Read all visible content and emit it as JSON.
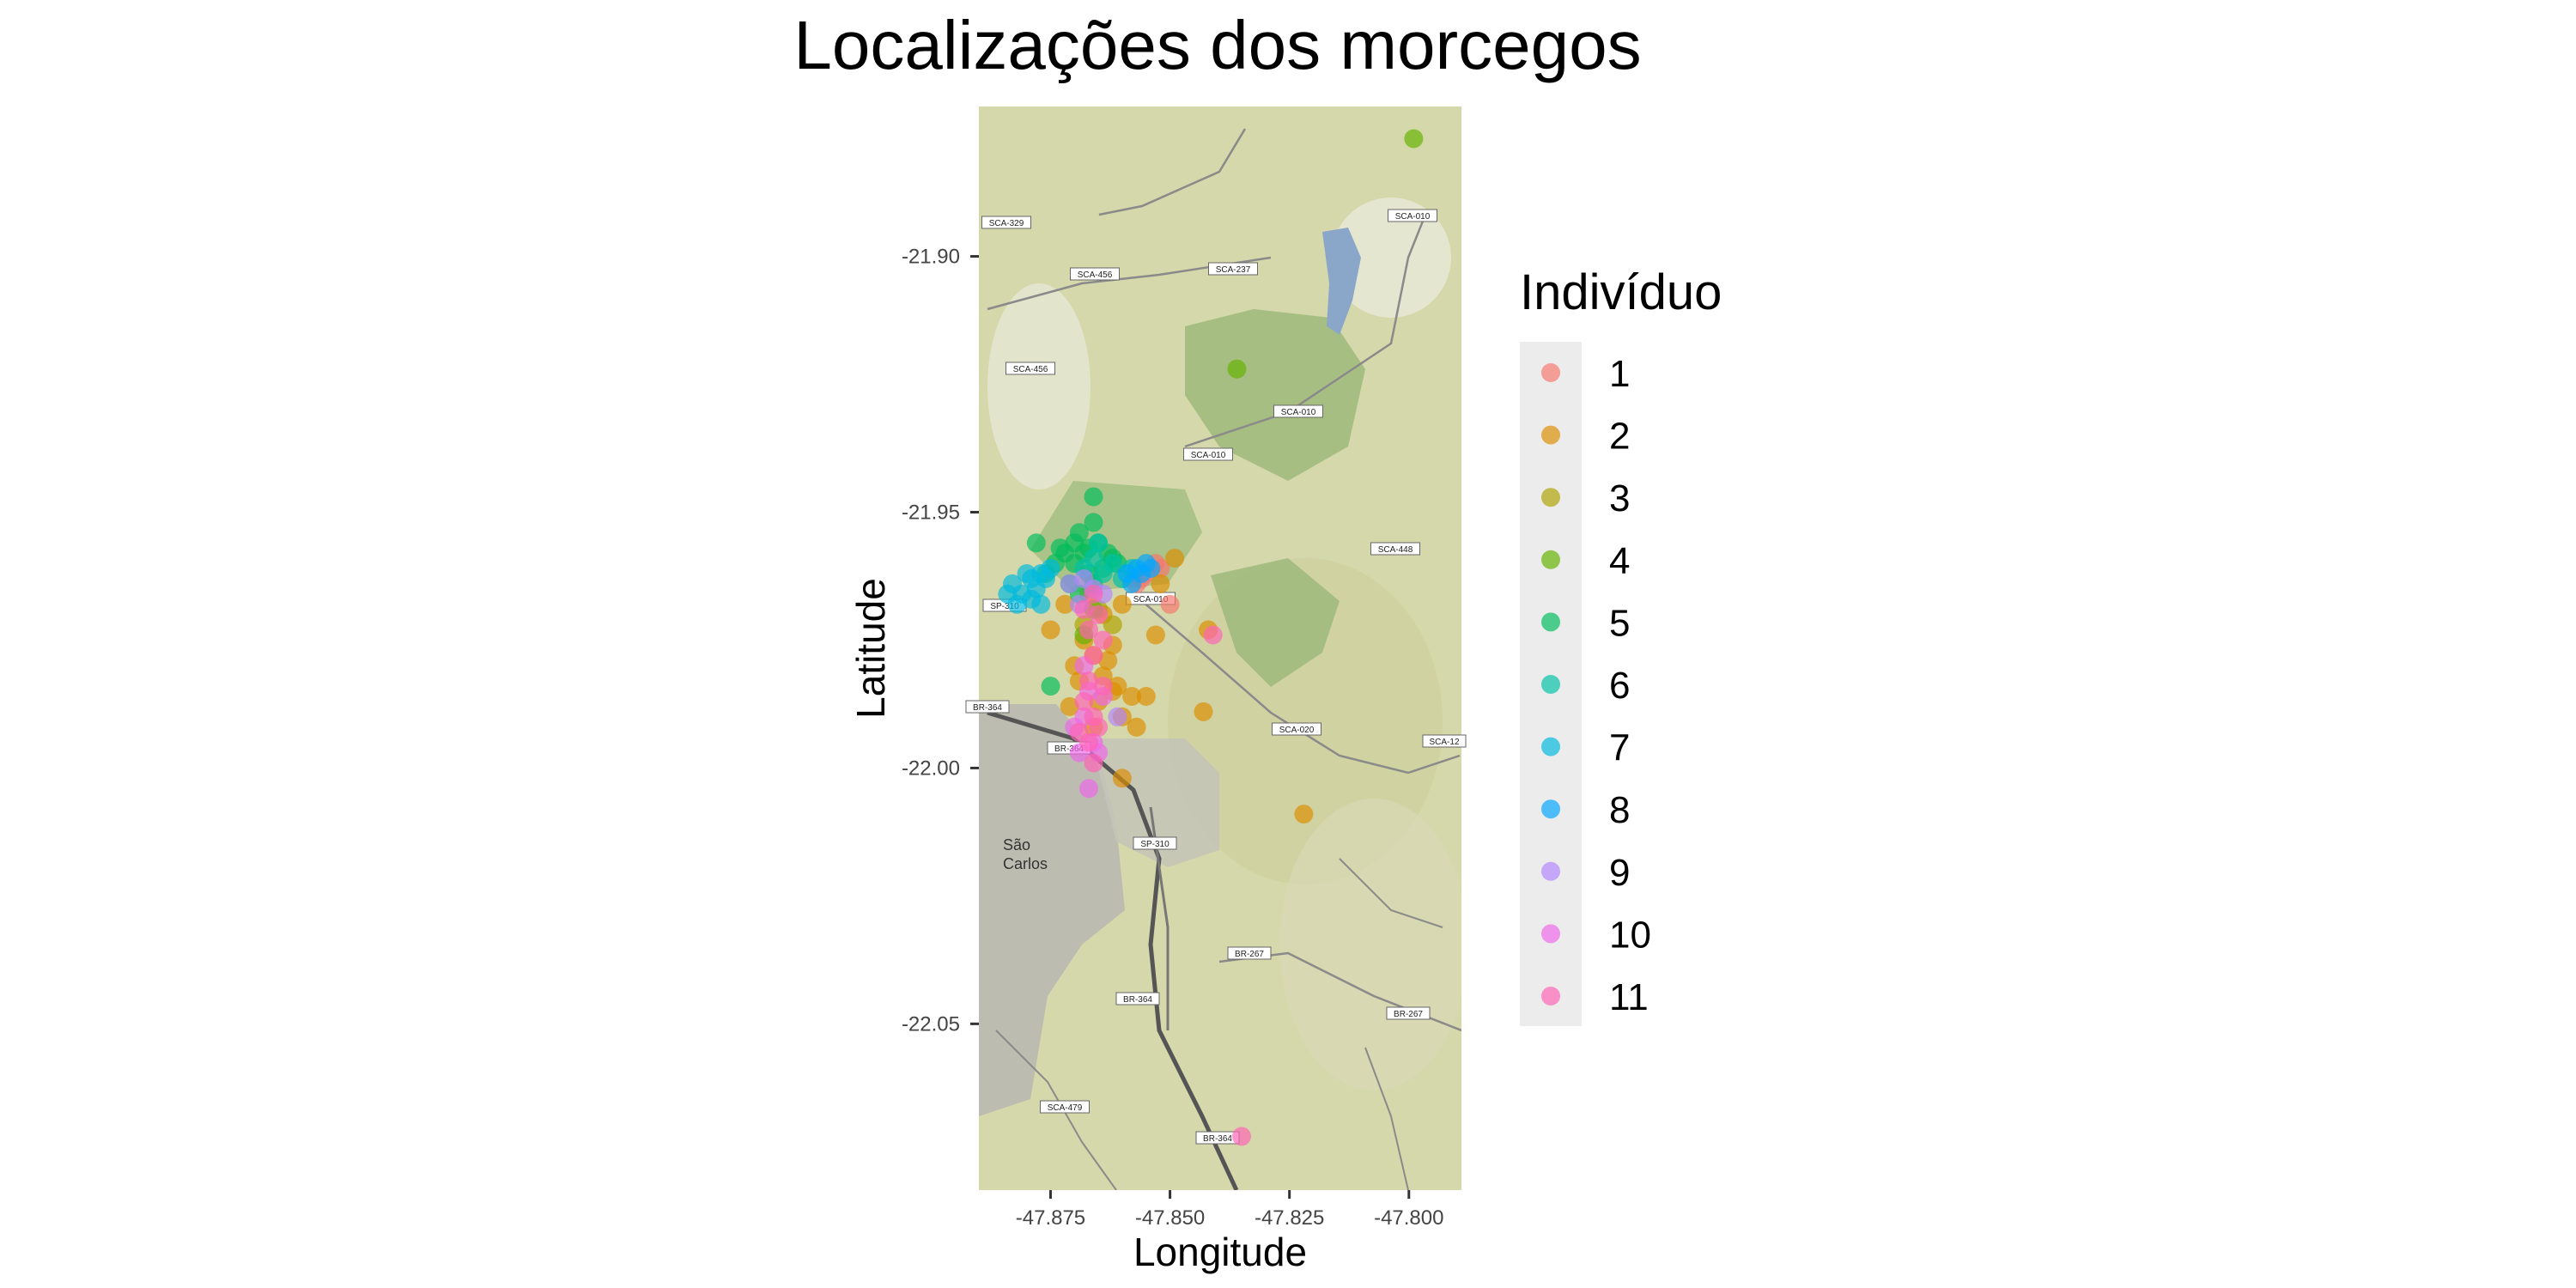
{
  "chart_data": {
    "type": "scatter",
    "title": "Localizações dos morcegos",
    "xlabel": "Longitude",
    "ylabel": "Latitude",
    "xlim": [
      -47.89,
      -47.789
    ],
    "ylim": [
      -22.0825,
      -21.8707
    ],
    "x_ticks": [
      {
        "value": -47.875,
        "label": "-47.875"
      },
      {
        "value": -47.85,
        "label": "-47.850"
      },
      {
        "value": -47.825,
        "label": "-47.825"
      },
      {
        "value": -47.8,
        "label": "-47.800"
      }
    ],
    "y_ticks": [
      {
        "value": -21.9,
        "label": "-21.90"
      },
      {
        "value": -21.95,
        "label": "-21.95"
      },
      {
        "value": -22.0,
        "label": "-22.00"
      },
      {
        "value": -22.05,
        "label": "-22.05"
      }
    ],
    "legend": {
      "title": "Indivíduo",
      "position": "right"
    },
    "background": "map tiles",
    "map_labels": [
      "SCA-329",
      "SCA-456",
      "SCA-237",
      "SCA-010",
      "SCA-456",
      "SCA-010",
      "SCA-010",
      "SCA-448",
      "SP-310",
      "SCA-010",
      "BR-364",
      "BR-364",
      "SCA-020",
      "SCA-12",
      "SP-310",
      "São",
      "Carlos",
      "BR-267",
      "BR-364",
      "BR-267",
      "SCA-479",
      "BR-364"
    ],
    "series": [
      {
        "name": "1",
        "color": "#F8766D",
        "points": [
          [
            -47.853,
            -21.96
          ],
          [
            -47.855,
            -21.962
          ],
          [
            -47.852,
            -21.961
          ],
          [
            -47.856,
            -21.963
          ],
          [
            -47.857,
            -21.964
          ],
          [
            -47.85,
            -21.968
          ]
        ]
      },
      {
        "name": "2",
        "color": "#DB8E00",
        "points": [
          [
            -47.868,
            -21.975
          ],
          [
            -47.87,
            -21.98
          ],
          [
            -47.866,
            -21.978
          ],
          [
            -47.864,
            -21.982
          ],
          [
            -47.862,
            -21.985
          ],
          [
            -47.86,
            -21.99
          ],
          [
            -47.858,
            -21.986
          ],
          [
            -47.855,
            -21.986
          ],
          [
            -47.853,
            -21.974
          ],
          [
            -47.857,
            -21.992
          ],
          [
            -47.86,
            -22.002
          ],
          [
            -47.842,
            -21.973
          ],
          [
            -47.843,
            -21.989
          ],
          [
            -47.822,
            -22.009
          ],
          [
            -47.849,
            -21.959
          ],
          [
            -47.852,
            -21.964
          ],
          [
            -47.875,
            -21.973
          ],
          [
            -47.866,
            -21.992
          ],
          [
            -47.863,
            -21.979
          ],
          [
            -47.861,
            -21.984
          ],
          [
            -47.869,
            -21.983
          ],
          [
            -47.871,
            -21.988
          ],
          [
            -47.864,
            -21.97
          ],
          [
            -47.86,
            -21.968
          ],
          [
            -47.867,
            -21.966
          ],
          [
            -47.872,
            -21.968
          ],
          [
            -47.865,
            -21.987
          ],
          [
            -47.862,
            -21.976
          ]
        ]
      },
      {
        "name": "3",
        "color": "#AEA200",
        "points": [
          [
            -47.868,
            -21.972
          ],
          [
            -47.865,
            -21.969
          ],
          [
            -47.862,
            -21.972
          ]
        ]
      },
      {
        "name": "4",
        "color": "#64B200",
        "points": [
          [
            -47.799,
            -21.877
          ],
          [
            -47.836,
            -21.922
          ],
          [
            -47.866,
            -21.969
          ],
          [
            -47.868,
            -21.974
          ]
        ]
      },
      {
        "name": "5",
        "color": "#00BD5C",
        "points": [
          [
            -47.866,
            -21.947
          ],
          [
            -47.866,
            -21.952
          ],
          [
            -47.869,
            -21.954
          ],
          [
            -47.872,
            -21.958
          ],
          [
            -47.874,
            -21.96
          ],
          [
            -47.87,
            -21.96
          ],
          [
            -47.868,
            -21.958
          ],
          [
            -47.865,
            -21.956
          ],
          [
            -47.863,
            -21.958
          ],
          [
            -47.861,
            -21.96
          ],
          [
            -47.878,
            -21.956
          ],
          [
            -47.876,
            -21.962
          ],
          [
            -47.871,
            -21.964
          ],
          [
            -47.867,
            -21.962
          ],
          [
            -47.864,
            -21.961
          ],
          [
            -47.869,
            -21.966
          ],
          [
            -47.866,
            -21.964
          ],
          [
            -47.875,
            -21.984
          ],
          [
            -47.862,
            -21.959
          ],
          [
            -47.873,
            -21.957
          ],
          [
            -47.87,
            -21.956
          ],
          [
            -47.867,
            -21.957
          ]
        ]
      },
      {
        "name": "6",
        "color": "#00C1A7",
        "points": [
          [
            -47.865,
            -21.956
          ],
          [
            -47.862,
            -21.96
          ],
          [
            -47.86,
            -21.963
          ],
          [
            -47.864,
            -21.962
          ],
          [
            -47.868,
            -21.961
          ],
          [
            -47.858,
            -21.961
          ],
          [
            -47.866,
            -21.959
          ]
        ]
      },
      {
        "name": "7",
        "color": "#00BADE",
        "points": [
          [
            -47.883,
            -21.964
          ],
          [
            -47.881,
            -21.966
          ],
          [
            -47.879,
            -21.963
          ],
          [
            -47.877,
            -21.962
          ],
          [
            -47.882,
            -21.968
          ],
          [
            -47.878,
            -21.965
          ],
          [
            -47.876,
            -21.963
          ],
          [
            -47.88,
            -21.962
          ],
          [
            -47.884,
            -21.966
          ],
          [
            -47.875,
            -21.961
          ],
          [
            -47.879,
            -21.967
          ],
          [
            -47.877,
            -21.968
          ]
        ]
      },
      {
        "name": "8",
        "color": "#00A6FF",
        "points": [
          [
            -47.859,
            -21.962
          ],
          [
            -47.857,
            -21.961
          ],
          [
            -47.855,
            -21.96
          ],
          [
            -47.858,
            -21.964
          ],
          [
            -47.856,
            -21.962
          ],
          [
            -47.854,
            -21.961
          ]
        ]
      },
      {
        "name": "9",
        "color": "#B385FF",
        "points": [
          [
            -47.871,
            -21.964
          ],
          [
            -47.868,
            -21.963
          ],
          [
            -47.864,
            -21.966
          ],
          [
            -47.869,
            -21.968
          ],
          [
            -47.861,
            -21.99
          ],
          [
            -47.866,
            -21.965
          ]
        ]
      },
      {
        "name": "10",
        "color": "#EF67EB",
        "points": [
          [
            -47.867,
            -21.985
          ],
          [
            -47.868,
            -21.99
          ],
          [
            -47.866,
            -21.995
          ],
          [
            -47.869,
            -21.997
          ],
          [
            -47.867,
            -22.004
          ],
          [
            -47.87,
            -21.992
          ],
          [
            -47.864,
            -21.986
          ],
          [
            -47.865,
            -21.997
          ],
          [
            -47.868,
            -21.98
          ]
        ]
      },
      {
        "name": "11",
        "color": "#FF63B6",
        "points": [
          [
            -47.866,
            -21.966
          ],
          [
            -47.865,
            -21.97
          ],
          [
            -47.867,
            -21.973
          ],
          [
            -47.864,
            -21.975
          ],
          [
            -47.866,
            -21.978
          ],
          [
            -47.867,
            -21.983
          ],
          [
            -47.868,
            -21.987
          ],
          [
            -47.866,
            -21.99
          ],
          [
            -47.869,
            -21.993
          ],
          [
            -47.865,
            -21.992
          ],
          [
            -47.867,
            -21.995
          ],
          [
            -47.866,
            -21.999
          ],
          [
            -47.841,
            -21.974
          ],
          [
            -47.835,
            -22.072
          ],
          [
            -47.864,
            -21.984
          ],
          [
            -47.868,
            -21.969
          ]
        ]
      }
    ]
  }
}
